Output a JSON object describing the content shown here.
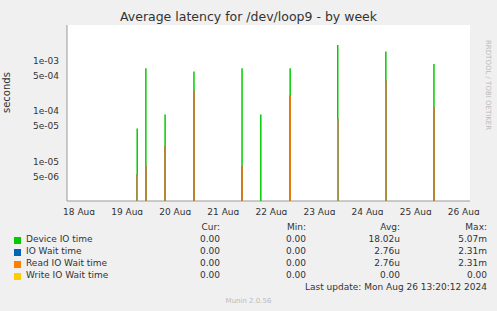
{
  "chart_data": {
    "type": "scatter",
    "marker": "spike",
    "title": "Average latency for /dev/loop9 - by week",
    "y_label": "seconds",
    "log": "y",
    "grid": true,
    "xlim": [
      17.75,
      26.13
    ],
    "xticks": [
      {
        "value": 18,
        "label": "18 Aug"
      },
      {
        "value": 19,
        "label": "19 Aug"
      },
      {
        "value": 20,
        "label": "20 Aug"
      },
      {
        "value": 21,
        "label": "21 Aug"
      },
      {
        "value": 22,
        "label": "22 Aug"
      },
      {
        "value": 23,
        "label": "23 Aug"
      },
      {
        "value": 24,
        "label": "24 Aug"
      },
      {
        "value": 25,
        "label": "25 Aug"
      },
      {
        "value": 26,
        "label": "26 Aug"
      }
    ],
    "ylim": [
      1.65e-06,
      0.005
    ],
    "yticks": [
      {
        "value": 5e-06,
        "label": "5e-06"
      },
      {
        "value": 1e-05,
        "label": "1e-05"
      },
      {
        "value": 5e-05,
        "label": "5e-05"
      },
      {
        "value": 0.0001,
        "label": "1e-04"
      },
      {
        "value": 0.0005,
        "label": "5e-04"
      },
      {
        "value": 0.001,
        "label": "1e-03"
      }
    ],
    "x": [
      19.21,
      19.39,
      19.79,
      20.39,
      21.39,
      21.78,
      22.39,
      23.38,
      24.38,
      25.38
    ],
    "series": [
      {
        "name": "Device IO time",
        "color": "#00cc00",
        "values": [
          4.5e-05,
          0.0007,
          8.5e-05,
          0.0006,
          0.0007,
          8.5e-05,
          0.0007,
          0.002,
          0.0015,
          0.00085
        ]
      },
      {
        "name": "IO Wait time",
        "color": "#0066b3",
        "values": [
          5.5e-06,
          8e-06,
          2e-05,
          0.00025,
          8e-06,
          null,
          0.0002,
          7e-05,
          0.0004,
          0.00012
        ]
      },
      {
        "name": "Read IO Wait time",
        "color": "#ff8000",
        "values": [
          5.5e-06,
          8e-06,
          2e-05,
          0.00025,
          8e-06,
          null,
          0.0002,
          7e-05,
          0.0004,
          0.00012
        ]
      },
      {
        "name": "Write IO Wait time",
        "color": "#ffcc00",
        "values": [
          null,
          null,
          null,
          null,
          null,
          null,
          null,
          null,
          null,
          null
        ]
      }
    ],
    "legend_table": {
      "columns": [
        "Cur:",
        "Min:",
        "Avg:",
        "Max:"
      ],
      "rows": [
        [
          "0.00",
          "0.00",
          "18.02u",
          "5.07m"
        ],
        [
          "0.00",
          "0.00",
          "2.76u",
          "2.31m"
        ],
        [
          "0.00",
          "0.00",
          "2.76u",
          "2.31m"
        ],
        [
          "0.00",
          "0.00",
          "0.00",
          "0.00"
        ]
      ]
    },
    "last_update": "Last update: Mon Aug 26 13:20:12 2024",
    "footer": "Munin 2.0.56",
    "side_text": "RRDTOOL / TOBI OETIKER"
  }
}
